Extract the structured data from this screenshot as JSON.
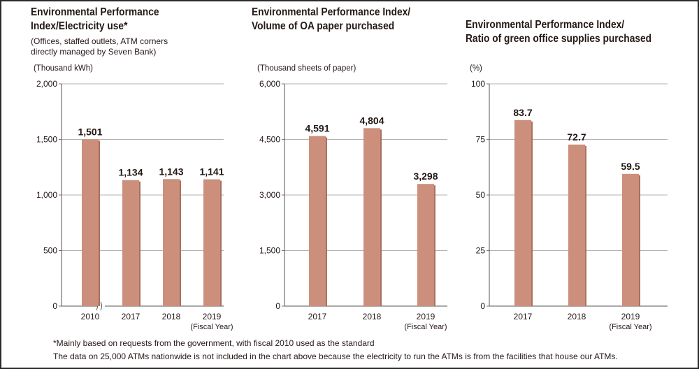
{
  "charts": {
    "electricity": {
      "title_line1": "Environmental Performance",
      "title_line2": "Index/Electricity use*",
      "subtitle_line1": "(Offices, staffed outlets, ATM corners",
      "subtitle_line2": "directly managed by Seven Bank)",
      "unit": "(Thousand kWh)"
    },
    "paper": {
      "title_line1": "Environmental Performance Index/",
      "title_line2": "Volume of OA paper purchased",
      "unit": "(Thousand sheets of paper)"
    },
    "green": {
      "title_line1": "Environmental Performance Index/",
      "title_line2": "Ratio of green office supplies purchased",
      "unit": "(%)"
    }
  },
  "chart_data": [
    {
      "type": "bar",
      "title": "Environmental Performance Index/Electricity use*",
      "ylabel": "(Thousand kWh)",
      "categories": [
        "2010",
        "2017",
        "2018",
        "2019"
      ],
      "values": [
        1501,
        1134,
        1143,
        1141
      ],
      "value_labels": [
        "1,501",
        "1,134",
        "1,143",
        "1,141"
      ],
      "yticks": [
        0,
        500,
        1000,
        1500,
        2000
      ],
      "ytick_labels": [
        "0",
        "500",
        "1,000",
        "1,500",
        "2,000"
      ],
      "ylim": [
        0,
        2000
      ],
      "axis_break_after": "2010",
      "x_unit_label": "(Fiscal Year)",
      "grid": true,
      "bar_color": "#cc8f7b"
    },
    {
      "type": "bar",
      "title": "Environmental Performance Index/Volume of OA paper purchased",
      "ylabel": "(Thousand sheets of paper)",
      "categories": [
        "2017",
        "2018",
        "2019"
      ],
      "values": [
        4591,
        4804,
        3298
      ],
      "value_labels": [
        "4,591",
        "4,804",
        "3,298"
      ],
      "yticks": [
        0,
        1500,
        3000,
        4500,
        6000
      ],
      "ytick_labels": [
        "0",
        "1,500",
        "3,000",
        "4,500",
        "6,000"
      ],
      "ylim": [
        0,
        6000
      ],
      "x_unit_label": "(Fiscal Year)",
      "grid": true,
      "bar_color": "#cc8f7b"
    },
    {
      "type": "bar",
      "title": "Environmental Performance Index/Ratio of green office supplies purchased",
      "ylabel": "(%)",
      "categories": [
        "2017",
        "2018",
        "2019"
      ],
      "values": [
        83.7,
        72.7,
        59.5
      ],
      "value_labels": [
        "83.7",
        "72.7",
        "59.5"
      ],
      "yticks": [
        0,
        25,
        50,
        75,
        100
      ],
      "ytick_labels": [
        "0",
        "25",
        "50",
        "75",
        "100"
      ],
      "ylim": [
        0,
        100
      ],
      "x_unit_label": "(Fiscal Year)",
      "grid": true,
      "bar_color": "#cc8f7b"
    }
  ],
  "footnotes": {
    "note1": "*Mainly based on requests from the government, with fiscal 2010 used as the standard",
    "note2": "The data on 25,000 ATMs nationwide is not included in the chart above because the electricity to run the ATMs is from the facilities that house our ATMs."
  }
}
